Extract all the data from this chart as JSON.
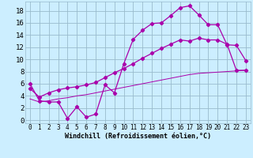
{
  "background_color": "#cceeff",
  "grid_color": "#99bbcc",
  "line_color": "#aa00aa",
  "xlabel": "Windchill (Refroidissement éolien,°C)",
  "xlabel_fontsize": 6.0,
  "ytick_fontsize": 6.5,
  "xtick_fontsize": 5.5,
  "ylim": [
    -0.5,
    19.5
  ],
  "xlim": [
    -0.5,
    23.5
  ],
  "yticks": [
    0,
    2,
    4,
    6,
    8,
    10,
    12,
    14,
    16,
    18
  ],
  "xticks": [
    0,
    1,
    2,
    3,
    4,
    5,
    6,
    7,
    8,
    9,
    10,
    11,
    12,
    13,
    14,
    15,
    16,
    17,
    18,
    19,
    20,
    21,
    22,
    23
  ],
  "line1_x": [
    0,
    1,
    2,
    3,
    4,
    5,
    6,
    7,
    8,
    9,
    10,
    11,
    12,
    13,
    14,
    15,
    16,
    17,
    18,
    19,
    20,
    21,
    22,
    23
  ],
  "line1_y": [
    6.0,
    3.2,
    3.0,
    3.0,
    0.3,
    2.2,
    0.5,
    1.0,
    5.8,
    4.5,
    9.3,
    13.3,
    14.8,
    15.9,
    16.0,
    17.2,
    18.5,
    18.8,
    17.3,
    15.7,
    15.7,
    12.4,
    12.3,
    9.8
  ],
  "line2_x": [
    0,
    1,
    2,
    3,
    4,
    5,
    6,
    7,
    8,
    9,
    10,
    11,
    12,
    13,
    14,
    15,
    16,
    17,
    18,
    19,
    20,
    21,
    22,
    23
  ],
  "line2_y": [
    5.2,
    3.8,
    4.5,
    5.0,
    5.3,
    5.5,
    5.8,
    6.2,
    7.0,
    7.8,
    8.5,
    9.3,
    10.2,
    11.0,
    11.8,
    12.5,
    13.2,
    13.0,
    13.5,
    13.2,
    13.2,
    12.5,
    8.2,
    8.2
  ],
  "line3_x": [
    0,
    1,
    2,
    3,
    4,
    5,
    6,
    7,
    8,
    9,
    10,
    11,
    12,
    13,
    14,
    15,
    16,
    17,
    18,
    19,
    20,
    21,
    22,
    23
  ],
  "line3_y": [
    3.5,
    3.0,
    3.2,
    3.5,
    3.7,
    4.0,
    4.2,
    4.5,
    4.8,
    5.1,
    5.4,
    5.7,
    6.0,
    6.3,
    6.6,
    6.9,
    7.2,
    7.5,
    7.7,
    7.8,
    7.9,
    8.0,
    8.1,
    8.2
  ]
}
